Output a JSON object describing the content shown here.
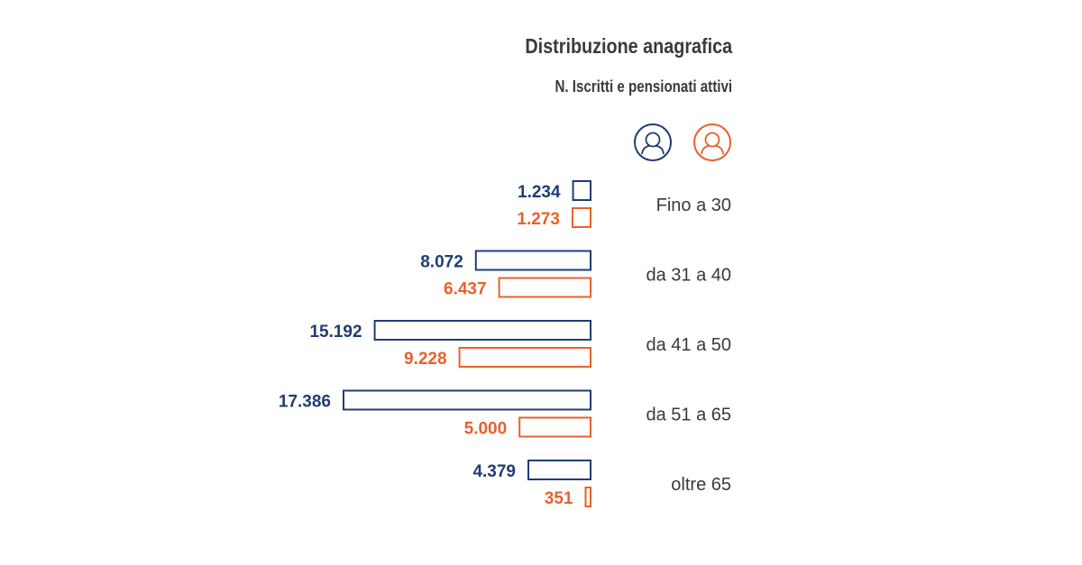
{
  "chart_data": {
    "type": "bar",
    "orientation": "horizontal",
    "title": "Distribuzione anagrafica",
    "subtitle": "N. Iscritti e pensionati attivi",
    "categories": [
      "Fino a 30",
      "da 31 a 40",
      "da 41 a 50",
      "da 51 a 65",
      "oltre 65"
    ],
    "series": [
      {
        "values": [
          1234,
          8072,
          15192,
          17386,
          4379
        ],
        "labels": [
          "1.234",
          "8.072",
          "15.192",
          "17.386",
          "4.379"
        ],
        "color": "#1f3d73",
        "icon": "male-user-icon"
      },
      {
        "values": [
          1273,
          6437,
          9228,
          5000,
          351
        ],
        "labels": [
          "1.273",
          "6.437",
          "9.228",
          "5.000",
          "351"
        ],
        "color": "#e8612c",
        "icon": "female-user-icon"
      }
    ],
    "value_axis_direction": "right-to-left",
    "grid": false
  }
}
